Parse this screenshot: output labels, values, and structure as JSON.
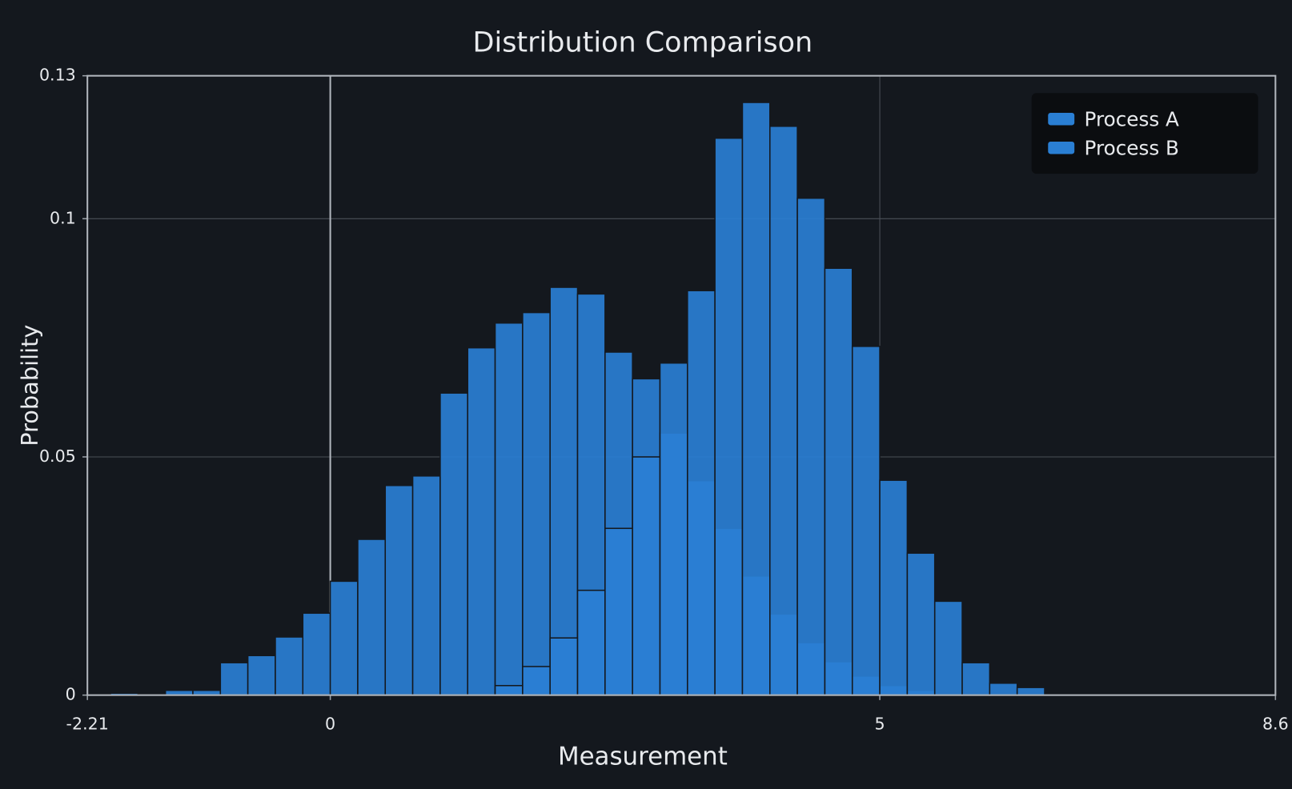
{
  "chart_data": {
    "type": "histogram",
    "title": "Distribution Comparison",
    "x_label": "Measurement",
    "y_label": "Probability",
    "bins": [
      -2,
      -1.75,
      -1.5,
      -1.25,
      -1,
      -0.75,
      -0.5,
      -0.25,
      0,
      0.25,
      0.5,
      0.75,
      1,
      1.25,
      1.5,
      1.75,
      2,
      2.25,
      2.5,
      2.75,
      3,
      3.25,
      3.5,
      3.75,
      4,
      4.25,
      4.5,
      4.75,
      5,
      5.25,
      5.5,
      5.75,
      6,
      6.25,
      6.5
    ],
    "series": [
      {
        "name": "Process A",
        "color": "#2a7fd4",
        "values": [
          0.0004,
          0,
          0.001,
          0.001,
          0.0068,
          0.0083,
          0.0122,
          0.0172,
          0.0239,
          0.0327,
          0.044,
          0.046,
          0.0634,
          0.0729,
          0.0781,
          0.0803,
          0.0856,
          0.0842,
          0.072,
          0.0664,
          0.055,
          0.045,
          0.035,
          0.025,
          0.017,
          0.011,
          0.007,
          0.004,
          0.002,
          0.001,
          0,
          0,
          0,
          0
        ]
      },
      {
        "name": "Process B",
        "color": "#2a7fd4",
        "values": [
          0,
          0,
          0,
          0,
          0,
          0,
          0,
          0,
          0,
          0,
          0,
          0,
          0,
          0,
          0.002,
          0.006,
          0.012,
          0.022,
          0.035,
          0.05,
          0.0697,
          0.0849,
          0.1169,
          0.1244,
          0.1194,
          0.1043,
          0.0896,
          0.0732,
          0.0451,
          0.0298,
          0.0197,
          0.0068,
          0.0025,
          0.0016
        ]
      }
    ],
    "xlim": [
      -2.21,
      8.6
    ],
    "xticks": [
      -2.21,
      0,
      5,
      8.6
    ],
    "ylim": [
      0,
      0.13
    ],
    "yticks": [
      0,
      0.05,
      0.1,
      0.13
    ],
    "grid": true,
    "legend_position": "top-right"
  }
}
